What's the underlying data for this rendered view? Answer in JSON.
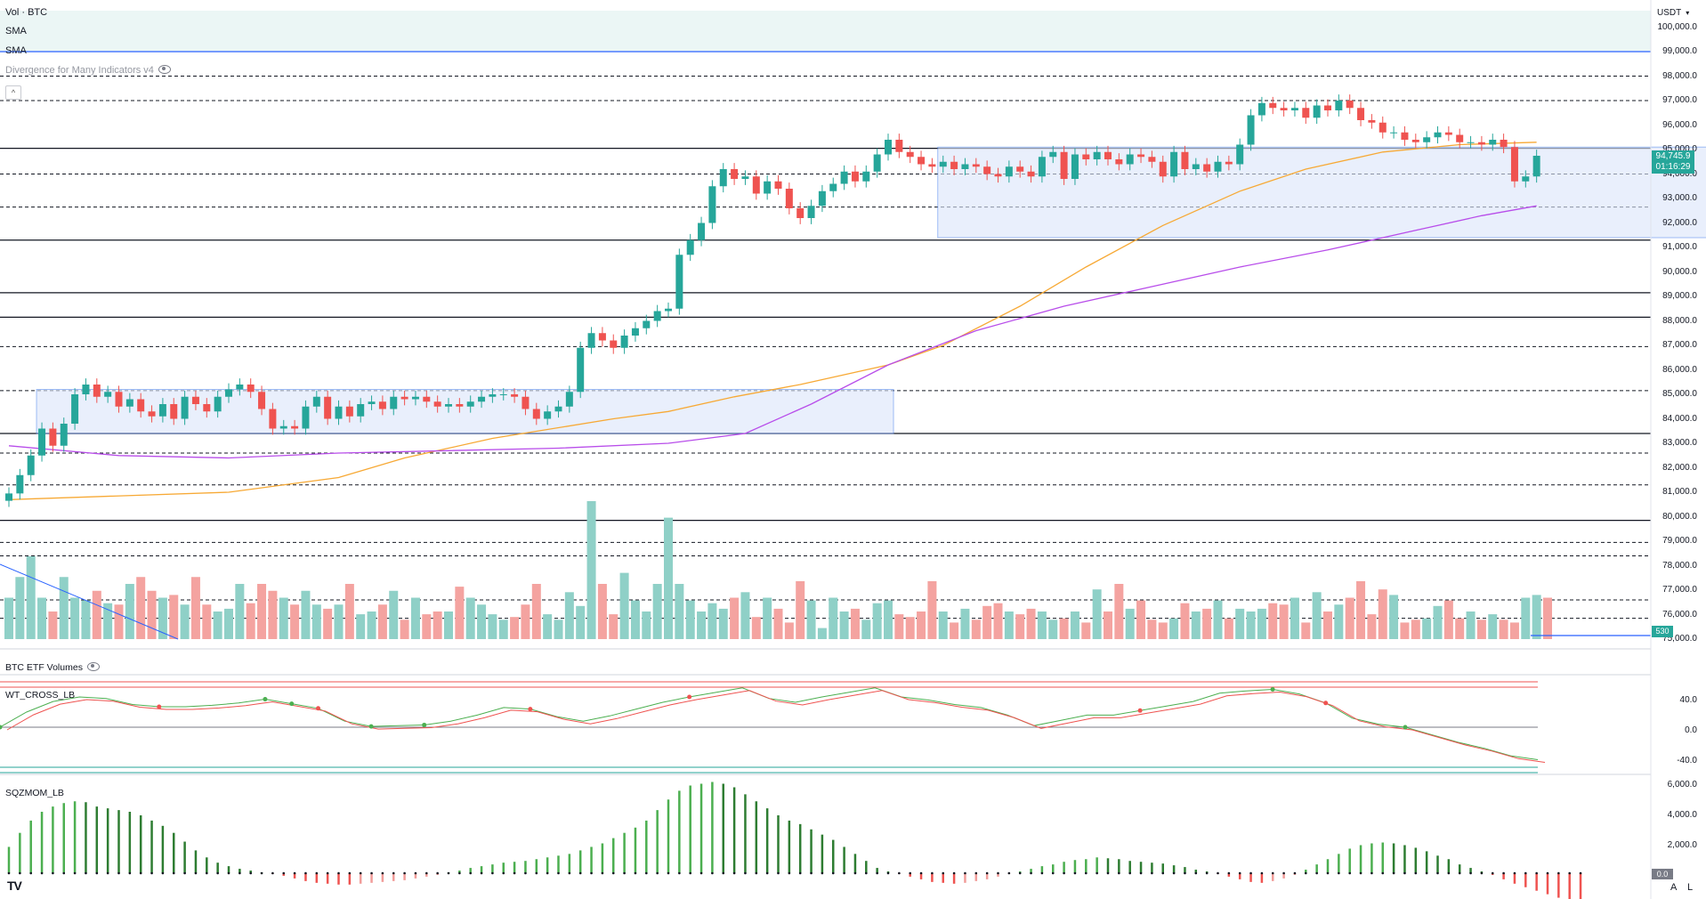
{
  "legend": {
    "title": "Vol · BTC",
    "sma1": "SMA",
    "sma2": "SMA",
    "divergence": "Divergence for Many Indicators v4"
  },
  "toolbar": {
    "collapse": "^"
  },
  "currency": "USDT",
  "price_axis": [
    "100,000.0",
    "99,000.0",
    "98,000.0",
    "97,000.0",
    "96,000.0",
    "95,000.0",
    "94,000.0",
    "93,000.0",
    "92,000.0",
    "91,000.0",
    "90,000.0",
    "89,000.0",
    "88,000.0",
    "87,000.0",
    "86,000.0",
    "85,000.0",
    "84,000.0",
    "83,000.0",
    "82,000.0",
    "81,000.0",
    "80,000.0",
    "79,000.0",
    "78,000.0",
    "77,000.0",
    "76,000.0",
    "75,000.0"
  ],
  "last_price": "94,745.9",
  "countdown": "01:16:29",
  "volume_tag": "530",
  "panes": {
    "etf": "BTC ETF Volumes",
    "wt": "WT_CROSS_LB",
    "sqz": "SQZMOM_LB"
  },
  "wt_axis": [
    "40.0",
    "0.0",
    "-40.0"
  ],
  "sqz_axis": [
    "6,000.0",
    "4,000.0",
    "2,000.0"
  ],
  "sqz_zero": "0.0",
  "logo": "TV",
  "scale_buttons": {
    "auto": "A",
    "log": "L"
  },
  "colors": {
    "up": "#26a69a",
    "down": "#ef5350",
    "sma50": "#f7a935",
    "sma200": "#b84dea",
    "vol_up": "#8fd0c7",
    "vol_down": "#f4a3a0"
  },
  "chart_data": {
    "type": "candlestick",
    "symbol": "BTC",
    "quote": "USDT",
    "ylim": [
      75000,
      100600
    ],
    "horizontal_levels": [
      {
        "price": 99000,
        "style": "solid",
        "color": "#2962ff"
      },
      {
        "price": 98000,
        "style": "dashed"
      },
      {
        "price": 97000,
        "style": "dashed"
      },
      {
        "price": 95050,
        "style": "solid"
      },
      {
        "price": 94000,
        "style": "dashed"
      },
      {
        "price": 92650,
        "style": "dashed"
      },
      {
        "price": 91300,
        "style": "solid"
      },
      {
        "price": 89150,
        "style": "solid"
      },
      {
        "price": 88150,
        "style": "solid"
      },
      {
        "price": 86950,
        "style": "dashed"
      },
      {
        "price": 85150,
        "style": "dashed"
      },
      {
        "price": 83400,
        "style": "solid"
      },
      {
        "price": 82600,
        "style": "dashed"
      },
      {
        "price": 81300,
        "style": "dashed"
      },
      {
        "price": 79850,
        "style": "solid"
      },
      {
        "price": 78950,
        "style": "dashed"
      },
      {
        "price": 78400,
        "style": "dashed"
      },
      {
        "price": 76600,
        "style": "dashed"
      },
      {
        "price": 75850,
        "style": "dashed"
      }
    ],
    "ranges": [
      {
        "from_bar": 3,
        "to_bar": 80,
        "top": 85200,
        "bottom": 83400
      },
      {
        "from_bar": 85,
        "to_bar": 154,
        "top": 95100,
        "bottom": 91400
      }
    ],
    "candles_close": [
      80950,
      81700,
      82500,
      83600,
      82900,
      83800,
      85000,
      85400,
      84900,
      85100,
      84500,
      84800,
      84300,
      84100,
      84600,
      84000,
      84900,
      84600,
      84300,
      84900,
      85200,
      85400,
      85100,
      84400,
      83600,
      83700,
      83600,
      84500,
      84900,
      84000,
      84500,
      84100,
      84600,
      84700,
      84400,
      84900,
      84800,
      84900,
      84700,
      84500,
      84600,
      84500,
      84700,
      84900,
      85000,
      85000,
      84900,
      84400,
      84000,
      84300,
      84500,
      85100,
      86900,
      87500,
      87200,
      86900,
      87400,
      87700,
      88000,
      88400,
      88500,
      90700,
      91300,
      92000,
      93500,
      94200,
      93800,
      93900,
      93200,
      93700,
      93400,
      92600,
      92200,
      92700,
      93300,
      93600,
      94100,
      93700,
      94100,
      94800,
      95400,
      94900,
      94700,
      94400,
      94300,
      94500,
      94200,
      94400,
      94300,
      94000,
      93900,
      94300,
      94100,
      93900,
      94700,
      94900,
      93800,
      94800,
      94600,
      94900,
      94600,
      94400,
      94800,
      94700,
      94500,
      93900,
      94900,
      94200,
      94400,
      94100,
      94500,
      94400,
      95200,
      96400,
      96900,
      96700,
      96600,
      96700,
      96300,
      96800,
      96600,
      97000,
      96700,
      96200,
      96100,
      95700,
      95700,
      95400,
      95300,
      95500,
      95700,
      95600,
      95300,
      95300,
      95200,
      95400,
      95100,
      93700,
      93900,
      94746
    ],
    "sma50_points": [
      [
        0,
        80700
      ],
      [
        20,
        81000
      ],
      [
        30,
        81600
      ],
      [
        36,
        82400
      ],
      [
        44,
        83200
      ],
      [
        55,
        84000
      ],
      [
        60,
        84300
      ],
      [
        66,
        84900
      ],
      [
        72,
        85400
      ],
      [
        80,
        86200
      ],
      [
        85,
        87000
      ],
      [
        92,
        88600
      ],
      [
        98,
        90200
      ],
      [
        105,
        91900
      ],
      [
        112,
        93300
      ],
      [
        118,
        94200
      ],
      [
        125,
        94900
      ],
      [
        132,
        95200
      ],
      [
        139,
        95300
      ]
    ],
    "sma200_points": [
      [
        0,
        82900
      ],
      [
        10,
        82500
      ],
      [
        20,
        82400
      ],
      [
        30,
        82600
      ],
      [
        40,
        82700
      ],
      [
        50,
        82800
      ],
      [
        60,
        83000
      ],
      [
        67,
        83400
      ],
      [
        73,
        84600
      ],
      [
        80,
        86200
      ],
      [
        88,
        87600
      ],
      [
        96,
        88600
      ],
      [
        104,
        89400
      ],
      [
        112,
        90200
      ],
      [
        120,
        90900
      ],
      [
        128,
        91700
      ],
      [
        134,
        92300
      ],
      [
        139,
        92700
      ]
    ],
    "volume_values": [
      30,
      45,
      60,
      30,
      20,
      45,
      30,
      28,
      35,
      26,
      25,
      40,
      45,
      35,
      30,
      32,
      25,
      45,
      25,
      20,
      22,
      40,
      26,
      40,
      35,
      30,
      25,
      35,
      25,
      22,
      25,
      40,
      18,
      20,
      25,
      35,
      14,
      30,
      18,
      20,
      20,
      38,
      30,
      25,
      18,
      14,
      16,
      25,
      40,
      18,
      14,
      34,
      24,
      100,
      40,
      18,
      48,
      28,
      20,
      40,
      88,
      40,
      28,
      20,
      26,
      22,
      30,
      34,
      16,
      30,
      22,
      12,
      42,
      28,
      8,
      30,
      20,
      22,
      14,
      26,
      28,
      18,
      16,
      20,
      42,
      20,
      12,
      22,
      14,
      24,
      26,
      20,
      18,
      22,
      20,
      14,
      15,
      20,
      12,
      36,
      20,
      40,
      22,
      28,
      14,
      12,
      15,
      26,
      20,
      22,
      28,
      15,
      22,
      20,
      22,
      26,
      25,
      30,
      12,
      34,
      20,
      25,
      30,
      42,
      18,
      36,
      32,
      12,
      14,
      15,
      24,
      28,
      15,
      20,
      14,
      18,
      14,
      12,
      30,
      32,
      30
    ],
    "wt_cross_values": [
      0,
      20,
      34,
      40,
      38,
      30,
      27,
      27,
      29,
      32,
      37,
      31,
      25,
      8,
      1,
      2,
      3,
      8,
      16,
      26,
      24,
      14,
      8,
      15,
      24,
      33,
      40,
      46,
      52,
      38,
      33,
      40,
      46,
      52,
      40,
      36,
      30,
      26,
      16,
      2,
      9,
      16,
      16,
      22,
      28,
      34,
      45,
      48,
      50,
      44,
      32,
      12,
      4,
      0,
      -10,
      -20,
      -28,
      -38,
      -43
    ],
    "sqz_momentum_values": [
      1500,
      2300,
      3000,
      3500,
      3800,
      4000,
      4100,
      4050,
      3800,
      3700,
      3600,
      3500,
      3300,
      3000,
      2700,
      2300,
      1800,
      1300,
      900,
      600,
      400,
      250,
      150,
      50,
      -50,
      -150,
      -300,
      -450,
      -550,
      -600,
      -650,
      -650,
      -600,
      -550,
      -500,
      -450,
      -400,
      -300,
      -200,
      -100,
      50,
      150,
      300,
      400,
      500,
      600,
      650,
      700,
      800,
      900,
      1000,
      1100,
      1300,
      1500,
      1700,
      2000,
      2300,
      2600,
      3000,
      3600,
      4200,
      4700,
      5000,
      5100,
      5200,
      5100,
      4900,
      4500,
      4100,
      3700,
      3300,
      3000,
      2800,
      2500,
      2200,
      1900,
      1500,
      1100,
      700,
      300,
      100,
      -50,
      -200,
      -350,
      -500,
      -550,
      -600,
      -550,
      -450,
      -350,
      -200,
      -50,
      100,
      250,
      400,
      500,
      650,
      750,
      800,
      900,
      850,
      800,
      700,
      650,
      600,
      550,
      450,
      350,
      200,
      100,
      -50,
      -200,
      -350,
      -500,
      -550,
      -450,
      -300,
      -100,
      200,
      500,
      800,
      1100,
      1400,
      1600,
      1700,
      1750,
      1700,
      1600,
      1450,
      1250,
      1000,
      800,
      500,
      300,
      100,
      -100,
      -350,
      -600,
      -800,
      -1000,
      -1200,
      -1400,
      -1500,
      -1600
    ]
  }
}
